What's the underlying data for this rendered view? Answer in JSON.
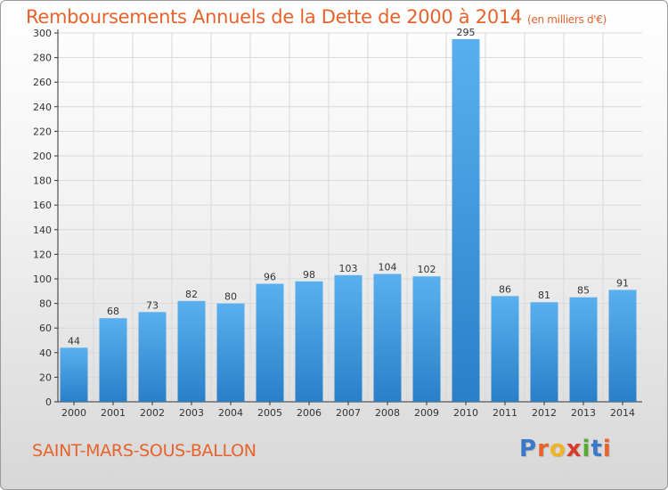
{
  "header": {
    "title": "Remboursements Annuels de la Dette de 2000 à 2014",
    "unit": "(en milliers d'€)"
  },
  "footer": {
    "commune": "SAINT-MARS-SOUS-BALLON",
    "logo_letters": [
      "P",
      "r",
      "o",
      "x",
      "i",
      "t",
      "i"
    ],
    "logo_colors": [
      "#3a78c9",
      "#e8622c",
      "#f0b323",
      "#d93a2b",
      "#5aa832",
      "#3a78c9",
      "#e8622c"
    ]
  },
  "colors": {
    "text_accent": "#e8622c",
    "bar_light": "#5ab0ee",
    "bar_dark": "#2a7fc8",
    "grid": "#d9d9d9"
  },
  "chart_data": {
    "type": "bar",
    "title": "Remboursements Annuels de la Dette de 2000 à 2014",
    "subtitle": "(en milliers d'€)",
    "categories": [
      "2000",
      "2001",
      "2002",
      "2003",
      "2004",
      "2005",
      "2006",
      "2007",
      "2008",
      "2009",
      "2010",
      "2011",
      "2012",
      "2013",
      "2014"
    ],
    "values": [
      44,
      68,
      73,
      82,
      80,
      96,
      98,
      103,
      104,
      102,
      295,
      86,
      81,
      85,
      91
    ],
    "ylim": [
      0,
      300
    ],
    "yticks": [
      0,
      20,
      40,
      60,
      80,
      100,
      120,
      140,
      160,
      180,
      200,
      220,
      240,
      260,
      280,
      300
    ],
    "grid": true,
    "data_labels": true
  }
}
